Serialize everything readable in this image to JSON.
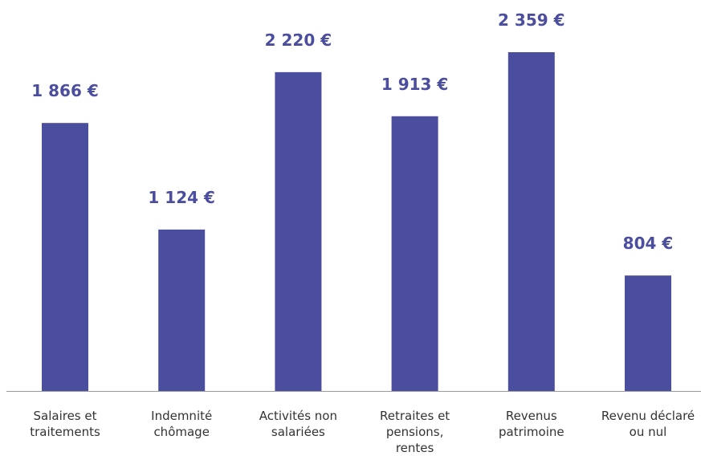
{
  "chart_data": {
    "type": "bar",
    "categories": [
      "Salaires et traitements",
      "Indemnité chômage",
      "Activités non salariées",
      "Retraites et pensions, rentes",
      "Revenus patrimoine",
      "Revenu déclaré ou nul"
    ],
    "values": [
      1866,
      1124,
      2220,
      1913,
      2359,
      804
    ],
    "value_labels": [
      "1 866 €",
      "1 124 €",
      "2 220 €",
      "1 913 €",
      "2 359 €",
      "804 €"
    ],
    "color": "#4b4d9e"
  }
}
